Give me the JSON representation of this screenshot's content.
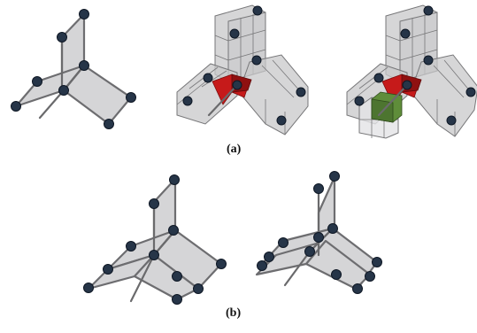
{
  "figure": {
    "label_a": "(a)",
    "label_b": "(b)"
  },
  "colors": {
    "node_fill": "#263548",
    "node_stroke": "#0e1724",
    "plane_fill": "#d5d5d7",
    "plane_stroke": "#6d6d70",
    "edge": "#6a6a6c",
    "box_fill": "#c8c8ca",
    "box_stroke": "#777779",
    "red_element": "#c61a1a",
    "green_element": "#5f8d3a"
  }
}
